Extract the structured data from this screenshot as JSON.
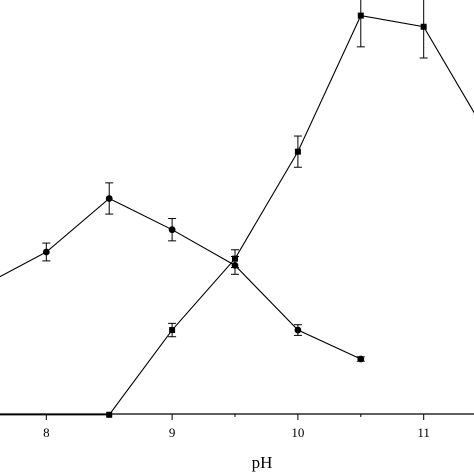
{
  "chart_data": {
    "type": "line",
    "title": "",
    "xlabel": "pH",
    "ylabel": "",
    "xlim": [
      7.6,
      11.4
    ],
    "ylim": [
      0,
      10
    ],
    "x_ticks": [
      8,
      9,
      10,
      11
    ],
    "x_tick_labels": [
      "8",
      "9",
      "10",
      "11"
    ],
    "grid": false,
    "legend": "none",
    "series": [
      {
        "marker": "square",
        "color": "#000000",
        "points": [
          {
            "x": 7.5,
            "y": 0.7,
            "err": 0
          },
          {
            "x": 8.5,
            "y": 0.7,
            "err": 0
          },
          {
            "x": 9.0,
            "y": 2.6,
            "err": 0.15
          },
          {
            "x": 9.5,
            "y": 4.2,
            "err": 0.2
          },
          {
            "x": 10.0,
            "y": 6.6,
            "err": 0.35
          },
          {
            "x": 10.5,
            "y": 9.65,
            "err": 0.7
          },
          {
            "x": 11.0,
            "y": 9.4,
            "err": 0.7
          },
          {
            "x": 11.5,
            "y": 7.0,
            "err": 0
          }
        ]
      },
      {
        "marker": "circle",
        "color": "#000000",
        "points": [
          {
            "x": 7.5,
            "y": 3.6,
            "err": 0
          },
          {
            "x": 8.0,
            "y": 4.35,
            "err": 0.2
          },
          {
            "x": 8.5,
            "y": 5.55,
            "err": 0.35
          },
          {
            "x": 9.0,
            "y": 4.85,
            "err": 0.25
          },
          {
            "x": 9.5,
            "y": 4.05,
            "err": 0.2
          },
          {
            "x": 10.0,
            "y": 2.6,
            "err": 0.12
          },
          {
            "x": 10.5,
            "y": 1.95,
            "err": 0.05
          }
        ]
      }
    ]
  }
}
